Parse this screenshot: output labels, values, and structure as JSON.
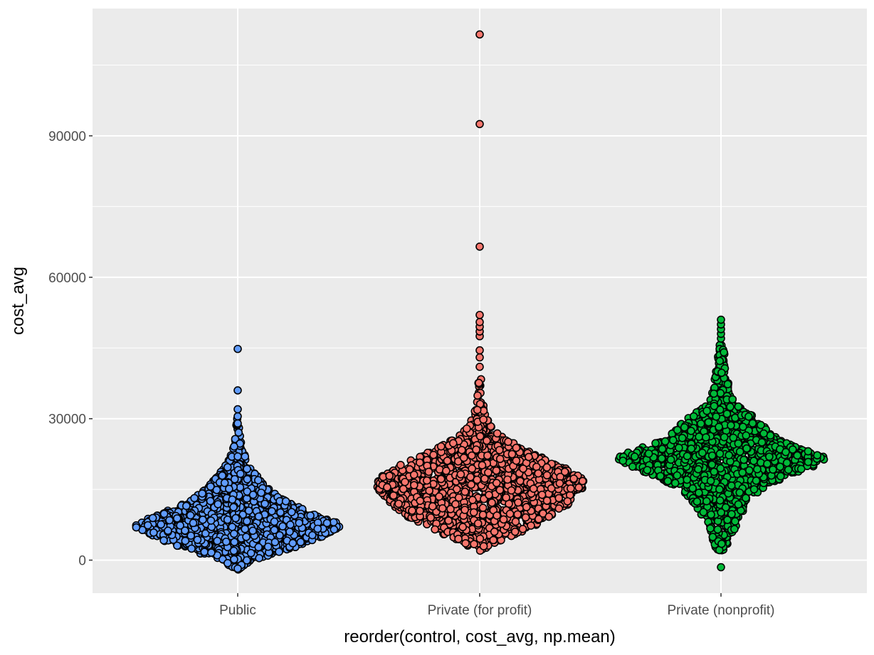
{
  "chart_data": {
    "type": "scatter",
    "subtype": "beeswarm",
    "title": "",
    "xlabel": "reorder(control, cost_avg, np.mean)",
    "ylabel": "cost_avg",
    "categories": [
      "Public",
      "Private (for profit)",
      "Private (nonprofit)"
    ],
    "y_ticks": [
      0,
      30000,
      60000,
      90000
    ],
    "y_tick_labels": [
      "0",
      "30000",
      "60000",
      "90000"
    ],
    "ylim": [
      -7000,
      117000
    ],
    "grid": true,
    "legend": "none",
    "colors": {
      "panel_background": "#ebebeb",
      "grid": "#ffffff",
      "point_outline": "#000000",
      "Public": "#619cff",
      "Private (for profit)": "#f8766d",
      "Private (nonprofit)": "#00ba38"
    },
    "series": [
      {
        "category": "Public",
        "color": "#619cff",
        "density_profile": [
          [
            -2000,
            0.03
          ],
          [
            0,
            0.14
          ],
          [
            2000,
            0.44
          ],
          [
            4000,
            0.7
          ],
          [
            6000,
            0.88
          ],
          [
            7500,
            1.0
          ],
          [
            9000,
            0.82
          ],
          [
            11000,
            0.6
          ],
          [
            13000,
            0.42
          ],
          [
            15000,
            0.3
          ],
          [
            17000,
            0.22
          ],
          [
            19000,
            0.15
          ],
          [
            21000,
            0.09
          ],
          [
            23000,
            0.05
          ],
          [
            25000,
            0.03
          ],
          [
            28000,
            0.02
          ],
          [
            31000,
            0.01
          ]
        ],
        "outliers": [
          -1800,
          29000,
          30500,
          32000,
          36000,
          44800
        ]
      },
      {
        "category": "Private (for profit)",
        "color": "#f8766d",
        "density_profile": [
          [
            2000,
            0.03
          ],
          [
            4000,
            0.18
          ],
          [
            6000,
            0.4
          ],
          [
            9000,
            0.66
          ],
          [
            12000,
            0.84
          ],
          [
            15000,
            0.96
          ],
          [
            16500,
            1.0
          ],
          [
            18000,
            0.92
          ],
          [
            20000,
            0.76
          ],
          [
            22000,
            0.56
          ],
          [
            24000,
            0.38
          ],
          [
            26000,
            0.22
          ],
          [
            28000,
            0.12
          ],
          [
            30000,
            0.07
          ],
          [
            32000,
            0.04
          ],
          [
            35000,
            0.02
          ],
          [
            40000,
            0.01
          ]
        ],
        "outliers": [
          41000,
          43000,
          44500,
          47500,
          48500,
          49500,
          50500,
          52000,
          66500,
          92500,
          111500
        ]
      },
      {
        "category": "Private (nonprofit)",
        "color": "#00ba38",
        "density_profile": [
          [
            1500,
            0.02
          ],
          [
            4000,
            0.08
          ],
          [
            7000,
            0.14
          ],
          [
            10000,
            0.2
          ],
          [
            13000,
            0.28
          ],
          [
            16000,
            0.45
          ],
          [
            18000,
            0.65
          ],
          [
            20000,
            0.88
          ],
          [
            21500,
            1.0
          ],
          [
            23000,
            0.85
          ],
          [
            25000,
            0.6
          ],
          [
            27000,
            0.45
          ],
          [
            29000,
            0.38
          ],
          [
            31000,
            0.28
          ],
          [
            33000,
            0.14
          ],
          [
            36000,
            0.08
          ],
          [
            40000,
            0.05
          ],
          [
            44000,
            0.03
          ],
          [
            46000,
            0.02
          ]
        ],
        "outliers": [
          -1500,
          47000,
          48000,
          49000,
          50000,
          51000
        ]
      }
    ]
  }
}
